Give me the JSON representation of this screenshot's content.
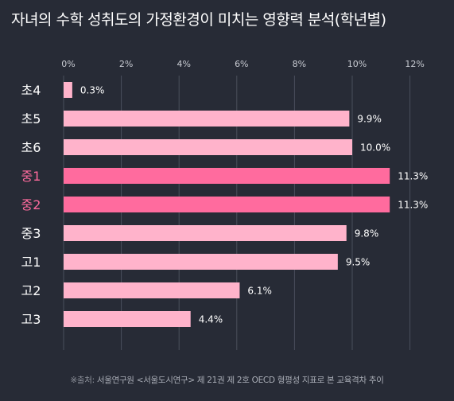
{
  "title": "자녀의 수학 성취도의 가정환경이 미치는 영향력 분석(학년별)",
  "source": {
    "note": "※출처:",
    "text": " 서울연구원 <서울도시연구> 제 21권 제 2호 OECD 형평성 지표로 본 교육격차 추이"
  },
  "colors": {
    "background": "#272b36",
    "bar_default": "#ffb3cb",
    "bar_highlight": "#ff6b9e",
    "label_default": "#ffffff",
    "label_highlight": "#ff6b9e",
    "grid": "#4a4f5c",
    "tick": "#c9ccd3"
  },
  "chart_data": {
    "type": "bar",
    "orientation": "horizontal",
    "categories": [
      "초4",
      "초5",
      "초6",
      "중1",
      "중2",
      "중3",
      "고1",
      "고2",
      "고3"
    ],
    "values": [
      0.3,
      9.9,
      10.0,
      11.3,
      11.3,
      9.8,
      9.5,
      6.1,
      4.4
    ],
    "value_labels": [
      "0.3%",
      "9.9%",
      "10.0%",
      "11.3%",
      "11.3%",
      "9.8%",
      "9.5%",
      "6.1%",
      "4.4%"
    ],
    "highlighted": [
      "중1",
      "중2"
    ],
    "x_ticks": [
      0,
      2,
      4,
      6,
      8,
      10,
      12
    ],
    "x_tick_labels": [
      "0%",
      "2%",
      "4%",
      "6%",
      "8%",
      "10%",
      "12%"
    ],
    "xlim": [
      0,
      12
    ],
    "grid": true
  }
}
